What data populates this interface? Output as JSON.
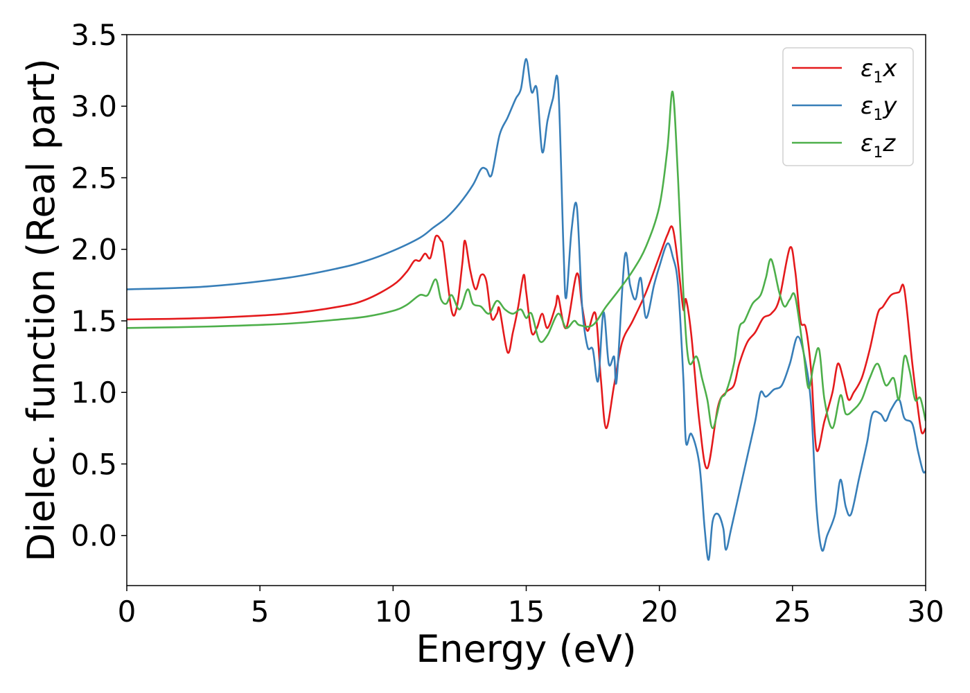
{
  "chart_data": {
    "type": "line",
    "title": "",
    "xlabel": "Energy (eV)",
    "ylabel": "Dielec. function (Real part)",
    "xlim": [
      0,
      30
    ],
    "ylim": [
      -0.35,
      3.5
    ],
    "xticks": [
      0,
      5,
      10,
      15,
      20,
      25,
      30
    ],
    "xtick_labels": [
      "0",
      "5",
      "10",
      "15",
      "20",
      "25",
      "30"
    ],
    "yticks": [
      0.0,
      0.5,
      1.0,
      1.5,
      2.0,
      2.5,
      3.0,
      3.5
    ],
    "ytick_labels": [
      "0.0",
      "0.5",
      "1.0",
      "1.5",
      "2.0",
      "2.5",
      "3.0",
      "3.5"
    ],
    "grid": false,
    "legend_position": "top-right",
    "series": [
      {
        "name": "ε1x",
        "legend_main": "ε",
        "legend_sub": "1",
        "legend_var": "x",
        "color": "#e41a1c",
        "points": [
          [
            0,
            1.51
          ],
          [
            3,
            1.52
          ],
          [
            6,
            1.55
          ],
          [
            8,
            1.6
          ],
          [
            9,
            1.65
          ],
          [
            10,
            1.75
          ],
          [
            10.5,
            1.84
          ],
          [
            10.8,
            1.92
          ],
          [
            11.0,
            1.92
          ],
          [
            11.2,
            1.97
          ],
          [
            11.4,
            1.94
          ],
          [
            11.6,
            2.09
          ],
          [
            11.8,
            2.06
          ],
          [
            11.9,
            2.0
          ],
          [
            12.2,
            1.57
          ],
          [
            12.4,
            1.6
          ],
          [
            12.6,
            1.9
          ],
          [
            12.7,
            2.06
          ],
          [
            12.9,
            1.85
          ],
          [
            13.1,
            1.72
          ],
          [
            13.3,
            1.82
          ],
          [
            13.5,
            1.78
          ],
          [
            13.7,
            1.52
          ],
          [
            13.9,
            1.55
          ],
          [
            14.0,
            1.58
          ],
          [
            14.3,
            1.28
          ],
          [
            14.5,
            1.42
          ],
          [
            14.7,
            1.6
          ],
          [
            14.9,
            1.82
          ],
          [
            15.0,
            1.7
          ],
          [
            15.2,
            1.42
          ],
          [
            15.4,
            1.45
          ],
          [
            15.6,
            1.55
          ],
          [
            15.8,
            1.45
          ],
          [
            16.1,
            1.6
          ],
          [
            16.2,
            1.67
          ],
          [
            16.5,
            1.45
          ],
          [
            16.9,
            1.83
          ],
          [
            17.1,
            1.6
          ],
          [
            17.3,
            1.43
          ],
          [
            17.6,
            1.55
          ],
          [
            17.8,
            1.1
          ],
          [
            18.0,
            0.75
          ],
          [
            18.3,
            1.05
          ],
          [
            18.6,
            1.35
          ],
          [
            19.0,
            1.5
          ],
          [
            19.5,
            1.7
          ],
          [
            20.0,
            1.95
          ],
          [
            20.3,
            2.1
          ],
          [
            20.5,
            2.15
          ],
          [
            20.7,
            1.9
          ],
          [
            20.9,
            1.58
          ],
          [
            21.0,
            1.65
          ],
          [
            21.2,
            1.4
          ],
          [
            21.5,
            0.8
          ],
          [
            21.8,
            0.47
          ],
          [
            22.2,
            0.9
          ],
          [
            22.5,
            1.0
          ],
          [
            22.8,
            1.05
          ],
          [
            23.0,
            1.2
          ],
          [
            23.3,
            1.35
          ],
          [
            23.6,
            1.42
          ],
          [
            23.9,
            1.52
          ],
          [
            24.2,
            1.55
          ],
          [
            24.5,
            1.65
          ],
          [
            24.9,
            2.01
          ],
          [
            25.1,
            1.85
          ],
          [
            25.3,
            1.5
          ],
          [
            25.5,
            1.45
          ],
          [
            25.7,
            1.15
          ],
          [
            25.9,
            0.6
          ],
          [
            26.2,
            0.8
          ],
          [
            26.5,
            1.0
          ],
          [
            26.7,
            1.2
          ],
          [
            26.9,
            1.1
          ],
          [
            27.1,
            0.95
          ],
          [
            27.3,
            1.0
          ],
          [
            27.6,
            1.1
          ],
          [
            27.9,
            1.3
          ],
          [
            28.2,
            1.55
          ],
          [
            28.4,
            1.6
          ],
          [
            28.7,
            1.68
          ],
          [
            29.0,
            1.7
          ],
          [
            29.2,
            1.72
          ],
          [
            29.5,
            1.2
          ],
          [
            29.7,
            0.9
          ],
          [
            29.85,
            0.72
          ],
          [
            30.0,
            0.75
          ]
        ]
      },
      {
        "name": "ε1y",
        "legend_main": "ε",
        "legend_sub": "1",
        "legend_var": "y",
        "color": "#377eb8",
        "points": [
          [
            0,
            1.72
          ],
          [
            3,
            1.74
          ],
          [
            6,
            1.8
          ],
          [
            8,
            1.87
          ],
          [
            9,
            1.92
          ],
          [
            10,
            1.99
          ],
          [
            11,
            2.08
          ],
          [
            11.5,
            2.15
          ],
          [
            12,
            2.22
          ],
          [
            12.5,
            2.32
          ],
          [
            13,
            2.45
          ],
          [
            13.3,
            2.56
          ],
          [
            13.5,
            2.56
          ],
          [
            13.7,
            2.52
          ],
          [
            14,
            2.8
          ],
          [
            14.3,
            2.92
          ],
          [
            14.6,
            3.05
          ],
          [
            14.8,
            3.12
          ],
          [
            15.0,
            3.33
          ],
          [
            15.2,
            3.1
          ],
          [
            15.4,
            3.12
          ],
          [
            15.6,
            2.68
          ],
          [
            15.8,
            2.9
          ],
          [
            16.0,
            3.05
          ],
          [
            16.2,
            3.15
          ],
          [
            16.4,
            2.0
          ],
          [
            16.5,
            1.66
          ],
          [
            16.7,
            2.13
          ],
          [
            16.9,
            2.3
          ],
          [
            17.1,
            1.6
          ],
          [
            17.3,
            1.32
          ],
          [
            17.5,
            1.3
          ],
          [
            17.7,
            1.08
          ],
          [
            17.9,
            1.56
          ],
          [
            18.1,
            1.2
          ],
          [
            18.3,
            1.25
          ],
          [
            18.4,
            1.09
          ],
          [
            18.7,
            1.95
          ],
          [
            18.9,
            1.75
          ],
          [
            19.1,
            1.65
          ],
          [
            19.3,
            1.8
          ],
          [
            19.5,
            1.52
          ],
          [
            19.8,
            1.75
          ],
          [
            20.0,
            1.88
          ],
          [
            20.3,
            2.04
          ],
          [
            20.5,
            1.95
          ],
          [
            20.7,
            1.75
          ],
          [
            20.9,
            1.1
          ],
          [
            21.0,
            0.65
          ],
          [
            21.2,
            0.71
          ],
          [
            21.5,
            0.5
          ],
          [
            21.7,
            0.05
          ],
          [
            21.85,
            -0.17
          ],
          [
            22.0,
            0.1
          ],
          [
            22.2,
            0.15
          ],
          [
            22.4,
            0.05
          ],
          [
            22.5,
            -0.1
          ],
          [
            22.7,
            0.05
          ],
          [
            23.0,
            0.3
          ],
          [
            23.3,
            0.55
          ],
          [
            23.6,
            0.8
          ],
          [
            23.8,
            1.0
          ],
          [
            24.0,
            0.97
          ],
          [
            24.3,
            1.02
          ],
          [
            24.6,
            1.05
          ],
          [
            24.9,
            1.2
          ],
          [
            25.2,
            1.39
          ],
          [
            25.5,
            1.2
          ],
          [
            25.7,
            0.9
          ],
          [
            25.9,
            0.2
          ],
          [
            26.1,
            -0.1
          ],
          [
            26.3,
            0.0
          ],
          [
            26.6,
            0.15
          ],
          [
            26.8,
            0.39
          ],
          [
            27.0,
            0.2
          ],
          [
            27.2,
            0.15
          ],
          [
            27.5,
            0.4
          ],
          [
            27.8,
            0.65
          ],
          [
            28.0,
            0.85
          ],
          [
            28.3,
            0.85
          ],
          [
            28.5,
            0.8
          ],
          [
            28.7,
            0.88
          ],
          [
            29.0,
            0.95
          ],
          [
            29.2,
            0.82
          ],
          [
            29.5,
            0.78
          ],
          [
            29.7,
            0.6
          ],
          [
            29.9,
            0.45
          ],
          [
            30.0,
            0.45
          ]
        ]
      },
      {
        "name": "ε1z",
        "legend_main": "ε",
        "legend_sub": "1",
        "legend_var": "z",
        "color": "#4daf4a",
        "points": [
          [
            0,
            1.45
          ],
          [
            3,
            1.46
          ],
          [
            6,
            1.48
          ],
          [
            8,
            1.51
          ],
          [
            9,
            1.53
          ],
          [
            10,
            1.57
          ],
          [
            10.5,
            1.61
          ],
          [
            11,
            1.68
          ],
          [
            11.3,
            1.68
          ],
          [
            11.6,
            1.79
          ],
          [
            11.8,
            1.65
          ],
          [
            12.0,
            1.62
          ],
          [
            12.2,
            1.68
          ],
          [
            12.5,
            1.58
          ],
          [
            12.8,
            1.72
          ],
          [
            13.0,
            1.62
          ],
          [
            13.3,
            1.6
          ],
          [
            13.6,
            1.55
          ],
          [
            13.9,
            1.64
          ],
          [
            14.2,
            1.58
          ],
          [
            14.5,
            1.55
          ],
          [
            14.8,
            1.58
          ],
          [
            15.0,
            1.52
          ],
          [
            15.2,
            1.55
          ],
          [
            15.5,
            1.36
          ],
          [
            15.8,
            1.4
          ],
          [
            16.2,
            1.55
          ],
          [
            16.5,
            1.45
          ],
          [
            16.8,
            1.5
          ],
          [
            17.0,
            1.47
          ],
          [
            17.5,
            1.47
          ],
          [
            18.0,
            1.6
          ],
          [
            18.5,
            1.72
          ],
          [
            19.0,
            1.85
          ],
          [
            19.5,
            2.02
          ],
          [
            20.0,
            2.3
          ],
          [
            20.3,
            2.7
          ],
          [
            20.5,
            3.1
          ],
          [
            20.7,
            2.5
          ],
          [
            20.9,
            1.7
          ],
          [
            21.1,
            1.22
          ],
          [
            21.4,
            1.25
          ],
          [
            21.6,
            1.1
          ],
          [
            21.8,
            0.95
          ],
          [
            22.0,
            0.75
          ],
          [
            22.3,
            0.95
          ],
          [
            22.5,
            1.0
          ],
          [
            22.8,
            1.2
          ],
          [
            23.0,
            1.45
          ],
          [
            23.2,
            1.5
          ],
          [
            23.5,
            1.62
          ],
          [
            23.8,
            1.68
          ],
          [
            24.0,
            1.8
          ],
          [
            24.2,
            1.93
          ],
          [
            24.5,
            1.7
          ],
          [
            24.7,
            1.6
          ],
          [
            24.9,
            1.65
          ],
          [
            25.1,
            1.67
          ],
          [
            25.4,
            1.3
          ],
          [
            25.6,
            1.03
          ],
          [
            25.8,
            1.2
          ],
          [
            26.0,
            1.3
          ],
          [
            26.2,
            0.95
          ],
          [
            26.5,
            0.75
          ],
          [
            26.8,
            0.98
          ],
          [
            27.0,
            0.85
          ],
          [
            27.3,
            0.88
          ],
          [
            27.6,
            0.95
          ],
          [
            27.9,
            1.1
          ],
          [
            28.2,
            1.2
          ],
          [
            28.5,
            1.05
          ],
          [
            28.8,
            1.1
          ],
          [
            29.0,
            0.95
          ],
          [
            29.2,
            1.25
          ],
          [
            29.4,
            1.15
          ],
          [
            29.6,
            0.95
          ],
          [
            29.8,
            0.96
          ],
          [
            30.0,
            0.8
          ]
        ]
      }
    ]
  }
}
